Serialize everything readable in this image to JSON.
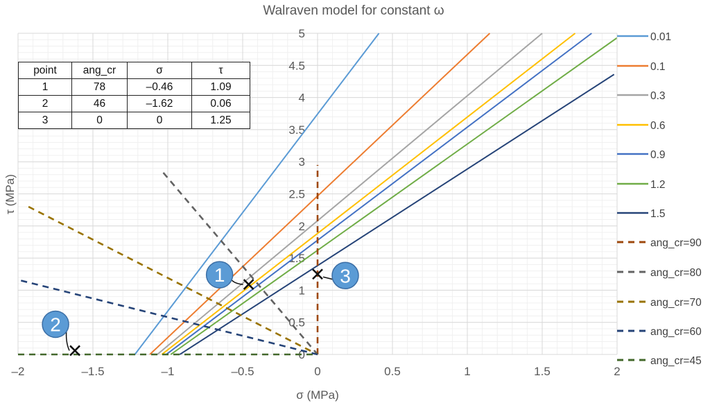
{
  "chart_data": {
    "type": "line",
    "title": "Walraven model for constant ω",
    "xlabel": "σ (MPa)",
    "ylabel": "τ (MPa)",
    "xlim": [
      -2,
      2
    ],
    "ylim": [
      0,
      5
    ],
    "x_ticks": [
      -2,
      -1.5,
      -1,
      -0.5,
      0,
      0.5,
      1,
      1.5,
      2
    ],
    "x_tick_labels": [
      "–2",
      "–1.5",
      "–1",
      "–0.5",
      "0",
      "0.5",
      "1",
      "1.5",
      "2"
    ],
    "y_ticks": [
      0,
      0.5,
      1,
      1.5,
      2,
      2.5,
      3,
      3.5,
      4,
      4.5,
      5
    ],
    "y_tick_labels": [
      "0",
      "0.5",
      "1",
      "1.5",
      "2",
      "2.5",
      "3",
      "3.5",
      "4",
      "4.5",
      "5"
    ],
    "grid": true,
    "legend_position": "right",
    "series": [
      {
        "name": "0.01",
        "color": "#5b9bd5",
        "dash": false,
        "points": [
          [
            -1.22,
            0
          ],
          [
            0.41,
            5
          ]
        ]
      },
      {
        "name": "0.1",
        "color": "#ed7d31",
        "dash": false,
        "points": [
          [
            -1.12,
            0
          ],
          [
            1.15,
            5
          ]
        ]
      },
      {
        "name": "0.3",
        "color": "#a5a5a5",
        "dash": false,
        "points": [
          [
            -1.07,
            0
          ],
          [
            1.5,
            5
          ]
        ]
      },
      {
        "name": "0.6",
        "color": "#ffc000",
        "dash": false,
        "points": [
          [
            -1.04,
            0
          ],
          [
            1.72,
            5
          ]
        ]
      },
      {
        "name": "0.9",
        "color": "#4472c4",
        "dash": false,
        "points": [
          [
            -1.01,
            0
          ],
          [
            1.83,
            5
          ]
        ]
      },
      {
        "name": "1.2",
        "color": "#70ad47",
        "dash": false,
        "points": [
          [
            -0.98,
            0
          ],
          [
            2.0,
            4.93
          ]
        ]
      },
      {
        "name": "1.5",
        "color": "#264478",
        "dash": false,
        "points": [
          [
            -0.92,
            0
          ],
          [
            1.98,
            4.36
          ]
        ]
      },
      {
        "name": "ang_cr=90",
        "color": "#9e480e",
        "dash": true,
        "points": [
          [
            0,
            0
          ],
          [
            0,
            2.95
          ]
        ]
      },
      {
        "name": "ang_cr=80",
        "color": "#636363",
        "dash": true,
        "points": [
          [
            -1.03,
            2.83
          ],
          [
            0,
            0
          ]
        ]
      },
      {
        "name": "ang_cr=70",
        "color": "#997300",
        "dash": true,
        "points": [
          [
            -1.93,
            2.3
          ],
          [
            0,
            0
          ]
        ]
      },
      {
        "name": "ang_cr=60",
        "color": "#264478",
        "dash": true,
        "points": [
          [
            -1.98,
            1.15
          ],
          [
            0,
            0
          ]
        ]
      },
      {
        "name": "ang_cr=45",
        "color": "#43682b",
        "dash": true,
        "points": [
          [
            -2,
            0
          ],
          [
            0,
            0
          ]
        ]
      }
    ],
    "annotations": [
      {
        "label": "1",
        "point": [
          -0.46,
          1.09
        ]
      },
      {
        "label": "2",
        "point": [
          -1.62,
          0.06
        ]
      },
      {
        "label": "3",
        "point": [
          0,
          1.25
        ]
      }
    ],
    "marker_color": "#5b9bd5"
  },
  "table": {
    "headers": [
      "point",
      "ang_cr",
      "σ",
      "τ"
    ],
    "rows": [
      [
        "1",
        "78",
        "–0.46",
        "1.09"
      ],
      [
        "2",
        "46",
        "–1.62",
        "0.06"
      ],
      [
        "3",
        "0",
        "0",
        "1.25"
      ]
    ]
  }
}
